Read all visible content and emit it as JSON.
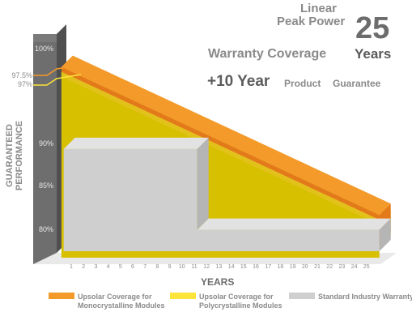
{
  "headline": {
    "line1": "Linear",
    "line2": "Peak Power",
    "line3": "Warranty Coverage",
    "big_number": "25",
    "years": "Years",
    "plus_ten": "+10 Year",
    "product": "Product",
    "guarantee": "Guarantee"
  },
  "colors": {
    "mono": "#f39a2a",
    "mono_dark": "#e37a1a",
    "poly": "#fde43a",
    "poly_dark": "#e2c21a",
    "fill": "#d6c000",
    "standard": "#cfcfcf",
    "wall": "#6e6e6e",
    "text": "#8a8a8a",
    "title_text": "#555555"
  },
  "legend": {
    "mono_line1": "Upsolar Coverage for",
    "mono_line2": "Monocrystalline Modules",
    "poly_line1": "Upsolar Coverage for",
    "poly_line2": "Polycrystalline Modules",
    "standard": "Standard Industry Warranty"
  },
  "chart_data": {
    "type": "area",
    "ylabel": "GUARANTEED PERFORMANCE",
    "xlabel": "YEARS",
    "x": [
      1,
      2,
      3,
      4,
      5,
      6,
      7,
      8,
      9,
      10,
      11,
      12,
      13,
      14,
      15,
      16,
      17,
      18,
      19,
      20,
      21,
      22,
      23,
      24,
      25
    ],
    "x_tick_labels": [
      "1",
      "2",
      "3",
      "4",
      "5",
      "6",
      "7",
      "8",
      "9",
      "10",
      "11",
      "12",
      "13",
      "14",
      "15",
      "16",
      "17",
      "18",
      "19",
      "20",
      "21",
      "22",
      "23",
      "24",
      "25"
    ],
    "y_tick_labels": [
      "100%",
      "97.5%",
      "97%",
      "90%",
      "85%",
      "80%"
    ],
    "y_ticks": [
      100,
      97.5,
      97,
      90,
      85,
      80
    ],
    "ylim": [
      78,
      101
    ],
    "series": [
      {
        "name": "Upsolar Coverage for Monocrystalline Modules",
        "points": [
          [
            1,
            97.5
          ],
          [
            25,
            82.5
          ]
        ]
      },
      {
        "name": "Upsolar Coverage for Polycrystalline Modules",
        "points": [
          [
            1,
            97
          ],
          [
            25,
            82
          ]
        ]
      },
      {
        "name": "Standard Industry Warranty",
        "points": [
          [
            0,
            90
          ],
          [
            10,
            90
          ],
          [
            10,
            80
          ],
          [
            25,
            80
          ]
        ]
      }
    ]
  }
}
